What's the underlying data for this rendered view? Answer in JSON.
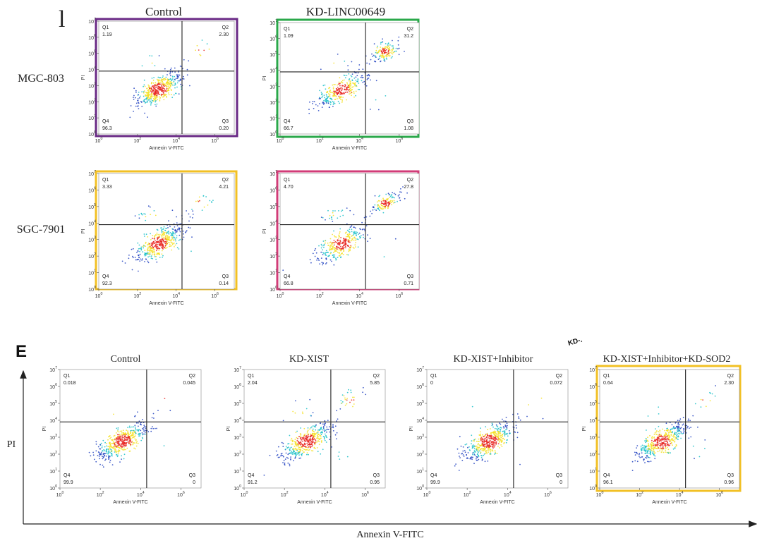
{
  "figure": {
    "top_panel_letter": "l",
    "bottom_panel_letter": "E",
    "stray_label": "KD-.",
    "bottom_axis_x_label": "Annexin V-FITC",
    "bottom_axis_y_label": "PI",
    "row_labels": [
      "MGC-803",
      "SGC-7901"
    ],
    "top_column_titles": [
      "Control",
      "KD-LINC00649"
    ],
    "bottom_column_titles": [
      "Control",
      "KD-XIST",
      "KD-XIST+Inhibitor",
      "KD-XIST+Inhibitor+KD-SOD2"
    ]
  },
  "colors": {
    "purple_frame": "#6a2a86",
    "green_frame": "#2aa84a",
    "yellow_frame": "#f2c024",
    "pink_frame": "#d23c78",
    "gate_line": "#222222",
    "dot_low": "#1f3fbf",
    "dot_mid": "#19c0c8",
    "dot_high": "#f5e020",
    "dot_peak": "#e8231e"
  },
  "chart_data": [
    {
      "type": "scatter",
      "panel": "MGC-803 Control",
      "xlabel": "Annexin V-FITC",
      "ylabel": "PI",
      "x_scale": "log",
      "y_scale": "log",
      "xlim": [
        1,
        10000000
      ],
      "ylim": [
        1,
        10000000
      ],
      "x_ticks": [
        "10^0",
        "10^2",
        "10^4",
        "10^6"
      ],
      "y_ticks": [
        "10^0",
        "10^1",
        "10^2",
        "10^3",
        "10^4",
        "10^5",
        "10^6",
        "10^7"
      ],
      "gate": {
        "x": 20000,
        "y": 8000
      },
      "quadrants": {
        "Q1": "1.19",
        "Q2": "2.30",
        "Q3": "0.20",
        "Q4": "96.3"
      },
      "frame_color": "purple"
    },
    {
      "type": "scatter",
      "panel": "MGC-803 KD-LINC00649",
      "xlabel": "Annexin V-FITC",
      "ylabel": "PI",
      "x_scale": "log",
      "y_scale": "log",
      "xlim": [
        1,
        10000000
      ],
      "ylim": [
        1,
        10000000
      ],
      "x_ticks": [
        "10^0",
        "10^2",
        "10^4",
        "10^6"
      ],
      "y_ticks": [
        "10^0",
        "10^1",
        "10^2",
        "10^3",
        "10^4",
        "10^5",
        "10^6",
        "10^7"
      ],
      "gate": {
        "x": 20000,
        "y": 8000
      },
      "quadrants": {
        "Q1": "1.09",
        "Q2": "31.2",
        "Q3": "1.08",
        "Q4": "66.7"
      },
      "frame_color": "green"
    },
    {
      "type": "scatter",
      "panel": "SGC-7901 Control",
      "xlabel": "Annexin V-FITC",
      "ylabel": "PI",
      "x_scale": "log",
      "y_scale": "log",
      "xlim": [
        1,
        10000000
      ],
      "ylim": [
        1,
        10000000
      ],
      "x_ticks": [
        "10^0",
        "10^2",
        "10^4",
        "10^6"
      ],
      "y_ticks": [
        "10^0",
        "10^1",
        "10^2",
        "10^3",
        "10^4",
        "10^5",
        "10^6",
        "10^7"
      ],
      "gate": {
        "x": 20000,
        "y": 8000
      },
      "quadrants": {
        "Q1": "3.33",
        "Q2": "4.21",
        "Q3": "0.14",
        "Q4": "92.3"
      },
      "frame_color": "yellow"
    },
    {
      "type": "scatter",
      "panel": "SGC-7901 KD-LINC00649",
      "xlabel": "Annexin V-FITC",
      "ylabel": "PI",
      "x_scale": "log",
      "y_scale": "log",
      "xlim": [
        1,
        10000000
      ],
      "ylim": [
        1,
        10000000
      ],
      "x_ticks": [
        "10^0",
        "10^2",
        "10^4",
        "10^6"
      ],
      "y_ticks": [
        "10^0",
        "10^1",
        "10^2",
        "10^3",
        "10^4",
        "10^5",
        "10^6",
        "10^7"
      ],
      "gate": {
        "x": 20000,
        "y": 8000
      },
      "quadrants": {
        "Q1": "4.70",
        "Q2": "27.8",
        "Q3": "0.71",
        "Q4": "66.8"
      },
      "frame_color": "pink"
    },
    {
      "type": "scatter",
      "panel": "E Control",
      "xlabel": "Annexin V-FITC",
      "ylabel": "PI",
      "x_scale": "log",
      "y_scale": "log",
      "xlim": [
        1,
        10000000
      ],
      "ylim": [
        1,
        10000000
      ],
      "x_ticks": [
        "10^0",
        "10^2",
        "10^4",
        "10^6"
      ],
      "y_ticks": [
        "10^0",
        "10^1",
        "10^2",
        "10^3",
        "10^4",
        "10^5",
        "10^6",
        "10^7"
      ],
      "gate": {
        "x": 20000,
        "y": 8000
      },
      "quadrants": {
        "Q1": "0.018",
        "Q2": "0.045",
        "Q3": "0",
        "Q4": "99.9"
      },
      "frame_color": "none"
    },
    {
      "type": "scatter",
      "panel": "E KD-XIST",
      "xlabel": "Annexin V-FITC",
      "ylabel": "PI",
      "x_scale": "log",
      "y_scale": "log",
      "xlim": [
        1,
        10000000
      ],
      "ylim": [
        1,
        10000000
      ],
      "x_ticks": [
        "10^0",
        "10^2",
        "10^4",
        "10^6"
      ],
      "y_ticks": [
        "10^0",
        "10^1",
        "10^2",
        "10^3",
        "10^4",
        "10^5",
        "10^6",
        "10^7"
      ],
      "gate": {
        "x": 20000,
        "y": 8000
      },
      "quadrants": {
        "Q1": "2.04",
        "Q2": "5.85",
        "Q3": "0.95",
        "Q4": "91.2"
      },
      "frame_color": "none"
    },
    {
      "type": "scatter",
      "panel": "E KD-XIST+Inhibitor",
      "xlabel": "Annexin V-FITC",
      "ylabel": "PI",
      "x_scale": "log",
      "y_scale": "log",
      "xlim": [
        1,
        10000000
      ],
      "ylim": [
        1,
        10000000
      ],
      "x_ticks": [
        "10^0",
        "10^2",
        "10^4",
        "10^6"
      ],
      "y_ticks": [
        "10^0",
        "10^1",
        "10^2",
        "10^3",
        "10^4",
        "10^5",
        "10^6",
        "10^7"
      ],
      "gate": {
        "x": 20000,
        "y": 8000
      },
      "quadrants": {
        "Q1": "0",
        "Q2": "0.072",
        "Q3": "0",
        "Q4": "99.9"
      },
      "frame_color": "none"
    },
    {
      "type": "scatter",
      "panel": "E KD-XIST+Inhibitor+KD-SOD2",
      "xlabel": "Annexin V-FITC",
      "ylabel": "PI",
      "x_scale": "log",
      "y_scale": "log",
      "xlim": [
        1,
        10000000
      ],
      "ylim": [
        1,
        10000000
      ],
      "x_ticks": [
        "10^0",
        "10^2",
        "10^4",
        "10^6"
      ],
      "y_ticks": [
        "10^0",
        "10^1",
        "10^2",
        "10^3",
        "10^4",
        "10^5",
        "10^6",
        "10^7"
      ],
      "gate": {
        "x": 20000,
        "y": 8000
      },
      "quadrants": {
        "Q1": "0.64",
        "Q2": "2.30",
        "Q3": "0.96",
        "Q4": "96.1"
      },
      "frame_color": "yellow"
    }
  ]
}
